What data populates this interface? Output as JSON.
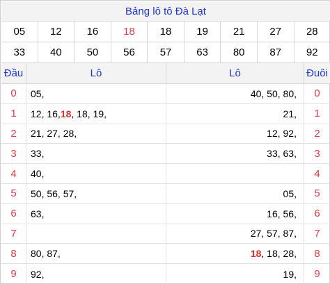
{
  "title": "Bảng lô tô Đà Lạt",
  "numbers": {
    "row1": [
      "05",
      "12",
      "16",
      "18",
      "18",
      "19",
      "21",
      "27",
      "28"
    ],
    "row2": [
      "33",
      "40",
      "50",
      "56",
      "57",
      "63",
      "80",
      "87",
      "92"
    ],
    "highlight_index_row1": 3,
    "highlight_color": "#e23b4a"
  },
  "table": {
    "headers": {
      "dau": "Đầu",
      "lo_left": "Lô",
      "lo_right": "Lô",
      "duoi": "Đuôi"
    },
    "rows": [
      {
        "dau": "0",
        "left": [
          {
            "t": "05,",
            "hi": false
          }
        ],
        "right": [
          {
            "t": "40, 50, 80,",
            "hi": false
          }
        ],
        "duoi": "0"
      },
      {
        "dau": "1",
        "left": [
          {
            "t": "12, 16, ",
            "hi": false
          },
          {
            "t": "18",
            "hi": true
          },
          {
            "t": ", 18, 19,",
            "hi": false
          }
        ],
        "right": [
          {
            "t": "21,",
            "hi": false
          }
        ],
        "duoi": "1"
      },
      {
        "dau": "2",
        "left": [
          {
            "t": "21, 27, 28,",
            "hi": false
          }
        ],
        "right": [
          {
            "t": "12, 92,",
            "hi": false
          }
        ],
        "duoi": "2"
      },
      {
        "dau": "3",
        "left": [
          {
            "t": "33,",
            "hi": false
          }
        ],
        "right": [
          {
            "t": "33, 63,",
            "hi": false
          }
        ],
        "duoi": "3"
      },
      {
        "dau": "4",
        "left": [
          {
            "t": "40,",
            "hi": false
          }
        ],
        "right": [],
        "duoi": "4"
      },
      {
        "dau": "5",
        "left": [
          {
            "t": "50, 56, 57,",
            "hi": false
          }
        ],
        "right": [
          {
            "t": "05,",
            "hi": false
          }
        ],
        "duoi": "5"
      },
      {
        "dau": "6",
        "left": [
          {
            "t": "63,",
            "hi": false
          }
        ],
        "right": [
          {
            "t": "16, 56,",
            "hi": false
          }
        ],
        "duoi": "6"
      },
      {
        "dau": "7",
        "left": [],
        "right": [
          {
            "t": "27, 57, 87,",
            "hi": false
          }
        ],
        "duoi": "7"
      },
      {
        "dau": "8",
        "left": [
          {
            "t": "80, 87,",
            "hi": false
          }
        ],
        "right": [
          {
            "t": "18",
            "hi": true
          },
          {
            "t": ", 18, 28,",
            "hi": false
          }
        ],
        "duoi": "8"
      },
      {
        "dau": "9",
        "left": [
          {
            "t": "92,",
            "hi": false
          }
        ],
        "right": [
          {
            "t": "19,",
            "hi": false
          }
        ],
        "duoi": "9"
      }
    ]
  },
  "colors": {
    "title_blue": "#1f35d4",
    "digit_red": "#e23b4a",
    "hi_red": "#e02a2a",
    "header_bg": "#f3f3f3",
    "grid": "#d6d6d6"
  }
}
